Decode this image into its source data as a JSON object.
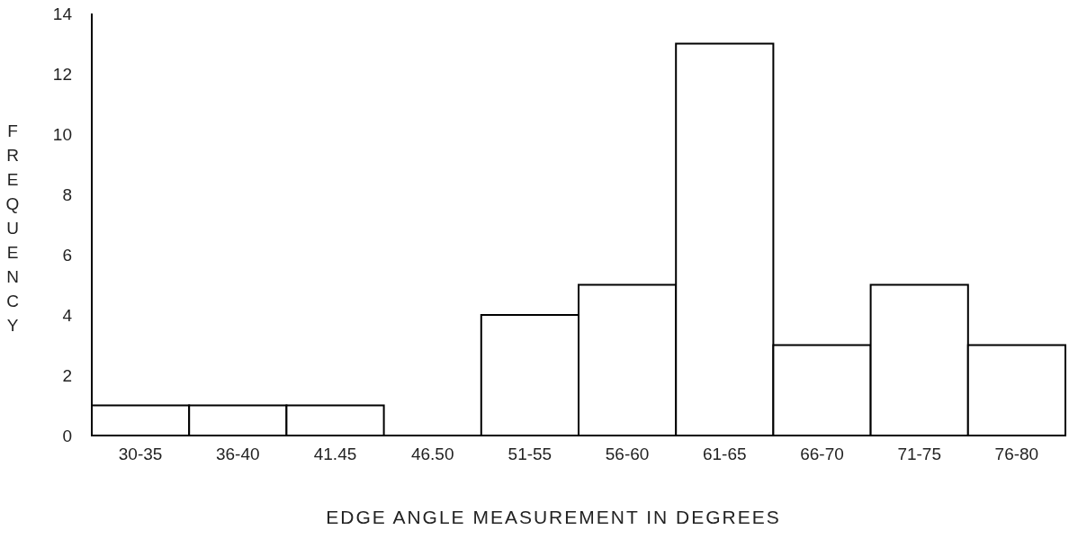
{
  "chart_data": {
    "type": "bar",
    "xlabel": "EDGE ANGLE MEASUREMENT IN DEGREES",
    "ylabel": "FREQUENCY",
    "categories": [
      "30-35",
      "36-40",
      "41.45",
      "46.50",
      "51-55",
      "56-60",
      "61-65",
      "66-70",
      "71-75",
      "76-80"
    ],
    "values": [
      1,
      1,
      1,
      0,
      4,
      5,
      13,
      3,
      5,
      3
    ],
    "color": "#000000",
    "ylim": [
      0,
      14
    ],
    "yticks": [
      0,
      2,
      4,
      6,
      8,
      10,
      12,
      14
    ]
  }
}
